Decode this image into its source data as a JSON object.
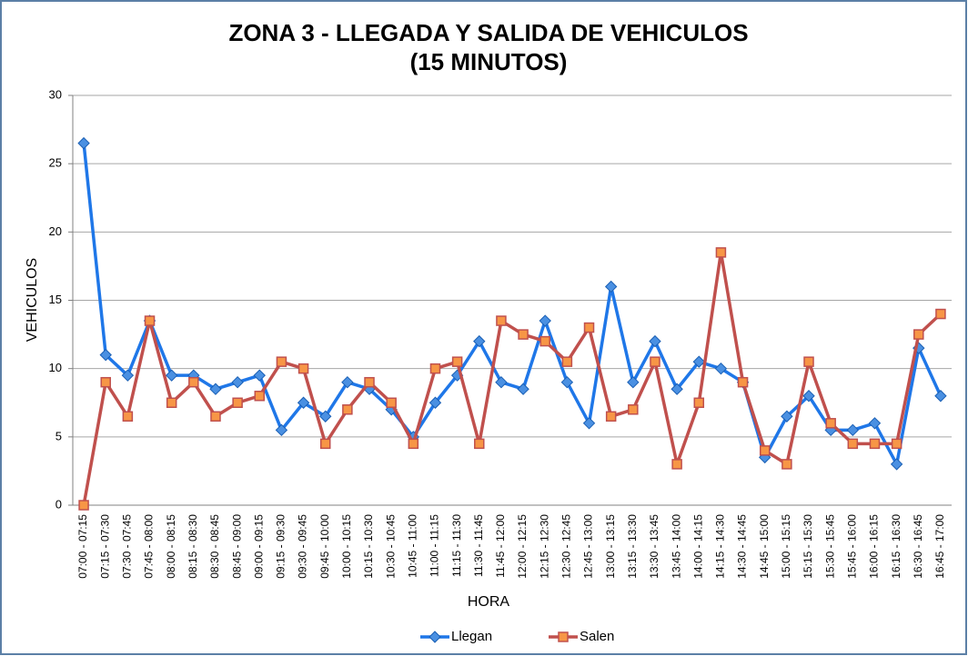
{
  "chart_data": {
    "type": "line",
    "title": [
      "ZONA 3 - LLEGADA Y SALIDA DE VEHICULOS",
      "(15 MINUTOS)"
    ],
    "x_label": "HORA",
    "y_label": "VEHICULOS",
    "categories": [
      "07:00 - 07:15",
      "07:15 - 07:30",
      "07:30 - 07:45",
      "07:45 - 08:00",
      "08:00 - 08:15",
      "08:15 - 08:30",
      "08:30 - 08:45",
      "08:45 - 09:00",
      "09:00 - 09:15",
      "09:15 - 09:30",
      "09:30 - 09:45",
      "09:45 - 10:00",
      "10:00 - 10:15",
      "10:15 - 10:30",
      "10:30 - 10:45",
      "10:45 - 11:00",
      "11:00 - 11:15",
      "11:15 - 11:30",
      "11:30 - 11:45",
      "11:45 - 12:00",
      "12:00 - 12:15",
      "12:15 - 12:30",
      "12:30 - 12:45",
      "12:45 - 13:00",
      "13:00 - 13:15",
      "13:15 - 13:30",
      "13:30 - 13:45",
      "13:45 - 14:00",
      "14:00 - 14:15",
      "14:15 - 14:30",
      "14:30 - 14:45",
      "14:45 - 15:00",
      "15:00 - 15:15",
      "15:15 - 15:30",
      "15:30 - 15:45",
      "15:45 - 16:00",
      "16:00 - 16:15",
      "16:15 - 16:30",
      "16:30 - 16:45",
      "16:45 - 17:00"
    ],
    "series": [
      {
        "name": "Llegan",
        "color": "#1f77e8",
        "marker": "diamond",
        "values": [
          26.5,
          11,
          9.5,
          13.5,
          9.5,
          9.5,
          8.5,
          9,
          9.5,
          5.5,
          7.5,
          6.5,
          9,
          8.5,
          7,
          5,
          7.5,
          9.5,
          12,
          9,
          8.5,
          13.5,
          9,
          6,
          16,
          9,
          12,
          8.5,
          10.5,
          10,
          9,
          3.5,
          6.5,
          8,
          5.5,
          5.5,
          6,
          3,
          11.5,
          8
        ]
      },
      {
        "name": "Salen",
        "color": "#c0504d",
        "marker": "square",
        "values": [
          0,
          9,
          6.5,
          13.5,
          7.5,
          9,
          6.5,
          7.5,
          8,
          10.5,
          10,
          4.5,
          7,
          9,
          7.5,
          4.5,
          10,
          10.5,
          4.5,
          13.5,
          12.5,
          12,
          10.5,
          13,
          6.5,
          7,
          10.5,
          3,
          7.5,
          18.5,
          9,
          4,
          3,
          10.5,
          6,
          4.5,
          4.5,
          4.5,
          12.5,
          14
        ]
      }
    ],
    "ylim": [
      0,
      30
    ],
    "yticks": [
      0,
      5,
      10,
      15,
      20,
      25,
      30
    ],
    "grid": true,
    "legend": "bottom"
  }
}
